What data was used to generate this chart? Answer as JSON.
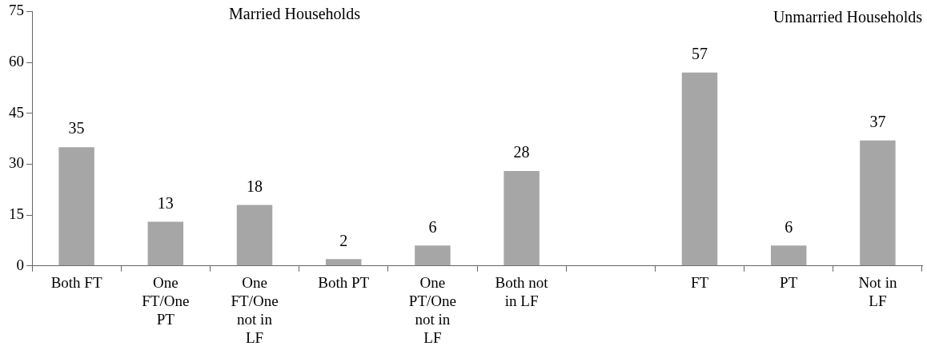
{
  "chart_data": {
    "type": "bar",
    "categories": [
      "Both FT",
      "One FT/One PT",
      "One FT/One not in LF",
      "Both PT",
      "One PT/One not in LF",
      "Both not in LF",
      null,
      "FT",
      "PT",
      "Not in LF"
    ],
    "values": [
      35,
      13,
      18,
      2,
      6,
      28,
      null,
      57,
      6,
      37
    ],
    "color": "#a6a6a6",
    "ylim": [
      0,
      75
    ],
    "yticks": [
      0,
      15,
      30,
      45,
      60,
      75
    ],
    "grid": false,
    "legend": false,
    "data_labels": true,
    "annotations": [
      "Married Households",
      "Unmarried Households"
    ]
  }
}
